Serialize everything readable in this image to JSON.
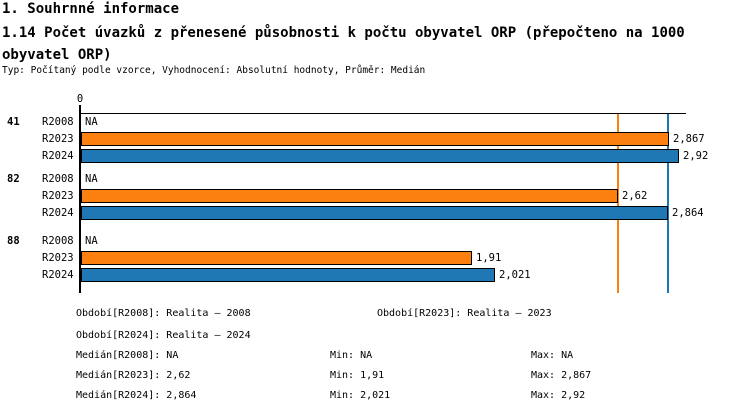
{
  "header": {
    "section_title": "1. Souhrnné informace",
    "indicator_title": "1.14 Počet úvazků z přenesené působnosti k počtu obyvatel ORP (přepočteno na 1000 obyvatel ORP)",
    "meta": "Typ: Počítaný podle vzorce, Vyhodnocení: Absolutní hodnoty, Průměr: Medián"
  },
  "chart_data": {
    "type": "bar",
    "orientation": "horizontal",
    "title": "1.14 Počet úvazků z přenesené působnosti k počtu obyvatel ORP (přepočteno na 1000 obyvatel ORP)",
    "axis": {
      "zero_label": "0",
      "xlim": [
        0,
        2.95
      ],
      "grid": false
    },
    "series_names": [
      "R2008",
      "R2023",
      "R2024"
    ],
    "colors": {
      "R2008": null,
      "R2023": "#FB8010",
      "R2024": "#1F77B4"
    },
    "groups": [
      {
        "id": "41",
        "rows": [
          {
            "series": "R2008",
            "value": null,
            "label": "NA"
          },
          {
            "series": "R2023",
            "value": 2.867,
            "label": "2,867"
          },
          {
            "series": "R2024",
            "value": 2.92,
            "label": "2,92"
          }
        ]
      },
      {
        "id": "82",
        "rows": [
          {
            "series": "R2008",
            "value": null,
            "label": "NA"
          },
          {
            "series": "R2023",
            "value": 2.62,
            "label": "2,62"
          },
          {
            "series": "R2024",
            "value": 2.864,
            "label": "2,864"
          }
        ]
      },
      {
        "id": "88",
        "rows": [
          {
            "series": "R2008",
            "value": null,
            "label": "NA"
          },
          {
            "series": "R2023",
            "value": 1.91,
            "label": "1,91"
          },
          {
            "series": "R2024",
            "value": 2.021,
            "label": "2,021"
          }
        ]
      }
    ],
    "median_lines": [
      {
        "series": "R2023",
        "value": 2.62,
        "color": "#FB8010"
      },
      {
        "series": "R2024",
        "value": 2.864,
        "color": "#1F77B4"
      }
    ]
  },
  "legend": {
    "periods": [
      "Období[R2008]: Realita – 2008",
      "Období[R2023]: Realita – 2023",
      "Období[R2024]: Realita – 2024"
    ],
    "stats": [
      {
        "median": "Medián[R2008]: NA",
        "min": "Min: NA",
        "max": "Max: NA"
      },
      {
        "median": "Medián[R2023]: 2,62",
        "min": "Min: 1,91",
        "max": "Max: 2,867"
      },
      {
        "median": "Medián[R2024]: 2,864",
        "min": "Min: 2,021",
        "max": "Max: 2,92"
      }
    ]
  }
}
